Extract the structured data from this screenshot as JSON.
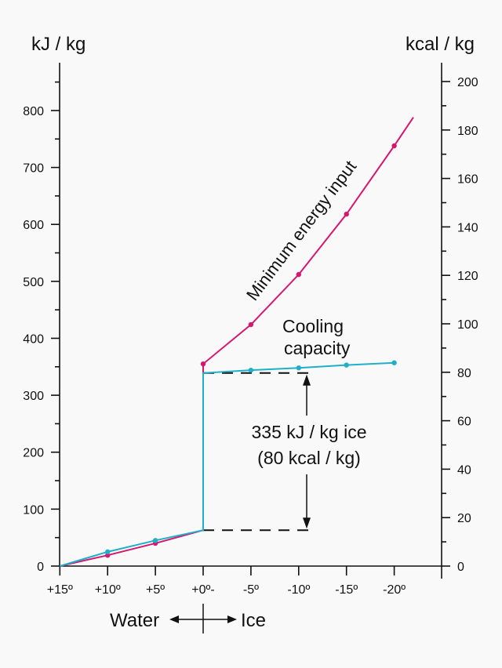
{
  "chart_data": {
    "type": "line",
    "ylabel_left": "kJ / kg",
    "ylabel_right": "kcal / kg",
    "ylim_left": [
      0,
      850
    ],
    "ylim_right": [
      0,
      205
    ],
    "yticks_left": [
      0,
      100,
      200,
      300,
      400,
      500,
      600,
      700,
      800
    ],
    "yticks_right": [
      0,
      20,
      40,
      60,
      80,
      100,
      120,
      140,
      160,
      180,
      200
    ],
    "x_ticks": [
      {
        "value": 15,
        "label": "+15º"
      },
      {
        "value": 10,
        "label": "+10º"
      },
      {
        "value": 5,
        "label": "+5º"
      },
      {
        "value": 0,
        "label": "+0º-"
      },
      {
        "value": -5,
        "label": "-5º"
      },
      {
        "value": -10,
        "label": "-10º"
      },
      {
        "value": -15,
        "label": "-15º"
      },
      {
        "value": -20,
        "label": "-20º"
      }
    ],
    "grid": false,
    "series": [
      {
        "name": "Minimum energy input",
        "color": "#d6176f",
        "points": [
          [
            15,
            0
          ],
          [
            10,
            19
          ],
          [
            5,
            40
          ],
          [
            0,
            63
          ],
          [
            0,
            355
          ],
          [
            -5,
            424
          ],
          [
            -10,
            512
          ],
          [
            -15,
            618
          ],
          [
            -20,
            738
          ]
        ],
        "markers": [
          [
            10,
            19
          ],
          [
            5,
            40
          ],
          [
            0,
            355
          ],
          [
            -5,
            424
          ],
          [
            -10,
            512
          ],
          [
            -15,
            618
          ],
          [
            -20,
            738
          ]
        ],
        "line_end": [
          -22,
          788
        ]
      },
      {
        "name": "Cooling capacity",
        "color": "#1fafc8",
        "points": [
          [
            15,
            0
          ],
          [
            10,
            25
          ],
          [
            5,
            45
          ],
          [
            0,
            63
          ],
          [
            0,
            339
          ],
          [
            -5,
            344
          ],
          [
            -10,
            348
          ],
          [
            -15,
            353
          ],
          [
            -20,
            357
          ]
        ],
        "markers": [
          [
            10,
            25
          ],
          [
            5,
            45
          ],
          [
            -5,
            344
          ],
          [
            -10,
            348
          ],
          [
            -15,
            353
          ],
          [
            -20,
            357
          ]
        ]
      }
    ],
    "labels": {
      "energy": "Minimum energy input",
      "cooling_1": "Cooling",
      "cooling_2": "capacity",
      "latent_1": "335 kJ / kg ice",
      "latent_2": "(80 kcal / kg)",
      "water": "Water",
      "ice": "Ice"
    },
    "latent_range_kj": [
      63,
      339
    ]
  }
}
